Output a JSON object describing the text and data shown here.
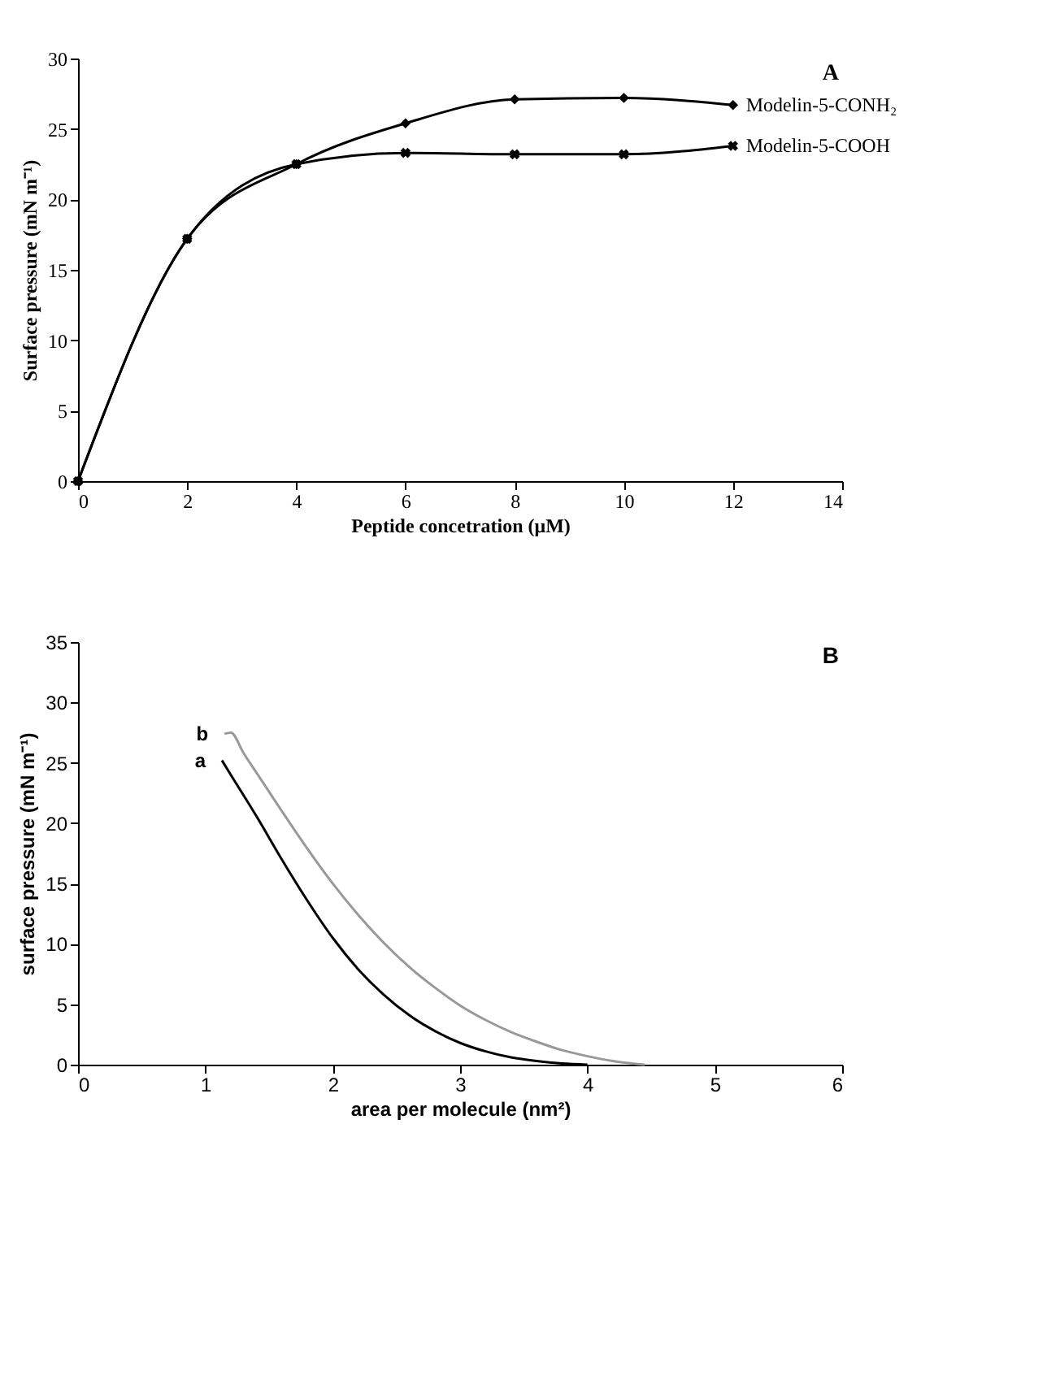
{
  "chart_data": [
    {
      "type": "line",
      "title": "A",
      "xlabel": "Peptide concetration (μM)",
      "ylabel": "Surface pressure (mN m⁻¹)",
      "xlim": [
        0,
        14
      ],
      "xticks": [
        0,
        2,
        4,
        6,
        8,
        10,
        12,
        14
      ],
      "ylim": [
        0,
        30
      ],
      "yticks": [
        0,
        5,
        10,
        15,
        20,
        25,
        30
      ],
      "grid": false,
      "legend": false,
      "line_style": "solid",
      "series": [
        {
          "name": "Modelin-5-CONH₂",
          "color": "#000000",
          "marker": "diamond",
          "x": [
            0,
            2,
            4,
            6,
            8,
            10,
            12
          ],
          "values": [
            0,
            17.2,
            22.5,
            25.4,
            27.1,
            27.2,
            26.7
          ]
        },
        {
          "name": "Modelin-5-COOH",
          "color": "#000000",
          "marker": "cross",
          "x": [
            0,
            2,
            4,
            6,
            8,
            10,
            12
          ],
          "values": [
            0,
            17.2,
            22.5,
            23.3,
            23.2,
            23.2,
            23.8
          ]
        }
      ]
    },
    {
      "type": "line",
      "title": "B",
      "xlabel": "area per molecule (nm²)",
      "ylabel": "surface pressure (mN m⁻¹)",
      "xlim": [
        0,
        6
      ],
      "xticks": [
        0,
        1,
        2,
        3,
        4,
        5,
        6
      ],
      "ylim": [
        0,
        35
      ],
      "yticks": [
        0,
        5,
        10,
        15,
        20,
        25,
        30,
        35
      ],
      "grid": false,
      "legend": false,
      "marker": "none",
      "line_style": "solid",
      "series": [
        {
          "name": "a",
          "color": "#000000",
          "x": [
            1.13,
            1.2,
            1.4,
            1.6,
            1.8,
            2.0,
            2.2,
            2.4,
            2.6,
            2.8,
            3.0,
            3.2,
            3.4,
            3.6,
            3.8,
            4.0
          ],
          "values": [
            25.2,
            24.0,
            20.6,
            17.0,
            13.6,
            10.5,
            7.9,
            5.8,
            4.1,
            2.8,
            1.8,
            1.1,
            0.6,
            0.3,
            0.1,
            0
          ]
        },
        {
          "name": "b",
          "color": "#999999",
          "x": [
            1.15,
            1.2,
            1.3,
            1.4,
            1.6,
            1.8,
            2.0,
            2.2,
            2.4,
            2.6,
            2.8,
            3.0,
            3.2,
            3.4,
            3.6,
            3.8,
            4.0,
            4.2,
            4.45
          ],
          "values": [
            27.4,
            27.5,
            25.8,
            24.2,
            21.0,
            17.9,
            15.0,
            12.4,
            10.1,
            8.1,
            6.4,
            4.9,
            3.7,
            2.7,
            1.9,
            1.2,
            0.7,
            0.3,
            0
          ]
        }
      ]
    }
  ]
}
